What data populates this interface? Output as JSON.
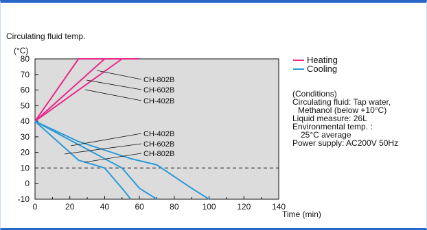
{
  "chart_data": {
    "type": "line",
    "title": "Circulating fluid temp.",
    "y_unit": "(°C)",
    "xlabel": "Time (min)",
    "xlim": [
      0,
      140
    ],
    "ylim": [
      -10,
      80
    ],
    "x_ticks": [
      0,
      20,
      40,
      60,
      80,
      100,
      120,
      140
    ],
    "y_ticks": [
      80,
      70,
      60,
      50,
      40,
      30,
      20,
      10,
      0,
      -10
    ],
    "reference_line": {
      "y": 10,
      "style": "dashed"
    },
    "legend": [
      {
        "label": "Heating",
        "color": "#e8288a"
      },
      {
        "label": "Cooling",
        "color": "#2a9ad6"
      }
    ],
    "series": [
      {
        "name": "CH-802B",
        "group": "Heating",
        "points": [
          [
            0,
            40
          ],
          [
            25,
            80
          ],
          [
            60,
            80
          ]
        ]
      },
      {
        "name": "CH-602B",
        "group": "Heating",
        "points": [
          [
            0,
            40
          ],
          [
            40,
            80
          ]
        ]
      },
      {
        "name": "CH-402B",
        "group": "Heating",
        "points": [
          [
            0,
            40
          ],
          [
            50,
            80
          ]
        ]
      },
      {
        "name": "CH-402B",
        "group": "Cooling",
        "points": [
          [
            0,
            40
          ],
          [
            25,
            27
          ],
          [
            55,
            16
          ],
          [
            70,
            12
          ],
          [
            90,
            -3
          ],
          [
            100,
            -10
          ]
        ]
      },
      {
        "name": "CH-602B",
        "group": "Cooling",
        "points": [
          [
            0,
            40
          ],
          [
            30,
            22
          ],
          [
            50,
            10
          ],
          [
            60,
            -3
          ],
          [
            70,
            -10
          ]
        ]
      },
      {
        "name": "CH-802B",
        "group": "Cooling",
        "points": [
          [
            0,
            40
          ],
          [
            25,
            15
          ],
          [
            40,
            10
          ],
          [
            50,
            -3
          ],
          [
            55,
            -10
          ]
        ]
      }
    ],
    "annotations": [
      "CH-802B",
      "CH-602B",
      "CH-402B",
      "CH-402B",
      "CH-602B",
      "CH-802B"
    ]
  },
  "conditions": {
    "heading": "(Conditions)",
    "lines": [
      "Circulating fluid: Tap water,",
      "Methanol (below +10°C)",
      "Liquid measure: 26L",
      "Environmental temp. :",
      "25°C average",
      "Power supply: AC200V 50Hz"
    ]
  }
}
